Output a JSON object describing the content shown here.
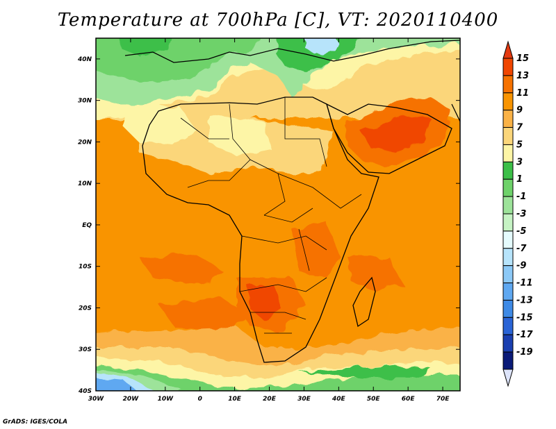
{
  "title": "Temperature at 700hPa [C], VT: 2020110400",
  "credit": "GrADS: IGES/COLA",
  "map": {
    "lon_range": [
      -30,
      75
    ],
    "lat_range": [
      -40,
      45
    ],
    "lon_ticks": [
      {
        "value": -30,
        "label": "30W"
      },
      {
        "value": -20,
        "label": "20W"
      },
      {
        "value": -10,
        "label": "10W"
      },
      {
        "value": 0,
        "label": "0"
      },
      {
        "value": 10,
        "label": "10E"
      },
      {
        "value": 20,
        "label": "20E"
      },
      {
        "value": 30,
        "label": "30E"
      },
      {
        "value": 40,
        "label": "40E"
      },
      {
        "value": 50,
        "label": "50E"
      },
      {
        "value": 60,
        "label": "60E"
      },
      {
        "value": 70,
        "label": "70E"
      }
    ],
    "lat_ticks": [
      {
        "value": 40,
        "label": "40N"
      },
      {
        "value": 30,
        "label": "30N"
      },
      {
        "value": 20,
        "label": "20N"
      },
      {
        "value": 10,
        "label": "10N"
      },
      {
        "value": 0,
        "label": "EQ"
      },
      {
        "value": -10,
        "label": "10S"
      },
      {
        "value": -20,
        "label": "20S"
      },
      {
        "value": -30,
        "label": "30S"
      },
      {
        "value": -40,
        "label": "40S"
      }
    ]
  },
  "colorbar": {
    "levels": [
      "15",
      "13",
      "11",
      "9",
      "7",
      "5",
      "3",
      "1",
      "-1",
      "-3",
      "-5",
      "-7",
      "-9",
      "-11",
      "-13",
      "-15",
      "-17",
      "-19"
    ],
    "colors": [
      "#f04600",
      "#f67200",
      "#f99400",
      "#fab246",
      "#fbd67a",
      "#fdf5a6",
      "#3cbf48",
      "#6ed26a",
      "#9de39a",
      "#c6f3c4",
      "#e5fbfd",
      "#b7e4fb",
      "#8cc9f7",
      "#5fa8f1",
      "#3e8ae6",
      "#2a64d6",
      "#1a3fb0",
      "#0a1a78"
    ],
    "top_color": "#e43a10",
    "bottom_color": "#dde4fa"
  }
}
